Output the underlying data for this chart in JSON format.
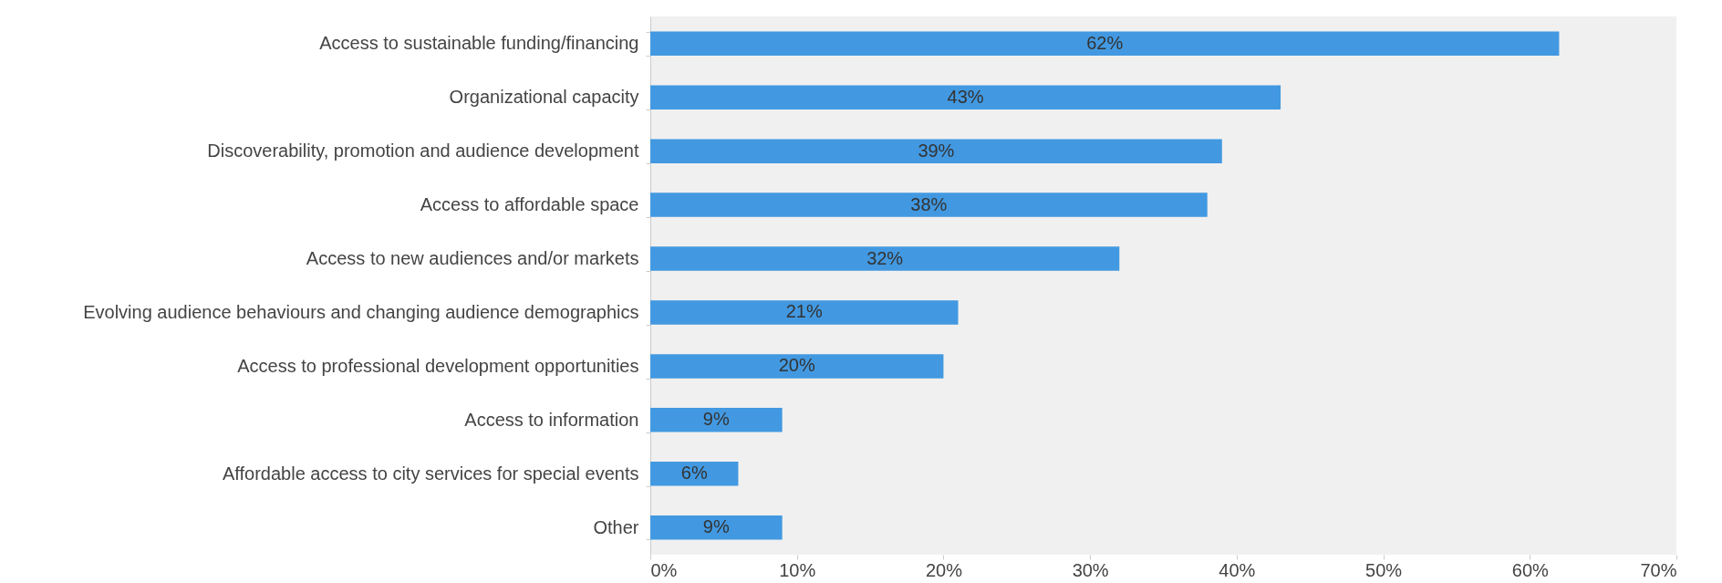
{
  "chart_data": {
    "type": "bar",
    "orientation": "horizontal",
    "categories": [
      "Access to sustainable funding/financing",
      "Organizational capacity",
      "Discoverability, promotion and audience development",
      "Access to affordable space",
      "Access to new audiences and/or markets",
      "Evolving audience behaviours and changing audience demographics",
      "Access to professional development opportunities",
      "Access to information",
      "Affordable access to city services for special events",
      "Other"
    ],
    "values": [
      62,
      43,
      39,
      38,
      32,
      21,
      20,
      9,
      6,
      9
    ],
    "value_labels": [
      "62%",
      "43%",
      "39%",
      "38%",
      "32%",
      "21%",
      "20%",
      "9%",
      "6%",
      "9%"
    ],
    "color": "#4299e1",
    "xlim": [
      0,
      70
    ],
    "xticks": [
      {
        "value": 0,
        "label": "0%"
      },
      {
        "value": 10,
        "label": "10%"
      },
      {
        "value": 20,
        "label": "20%"
      },
      {
        "value": 30,
        "label": "30%"
      },
      {
        "value": 40,
        "label": "40%"
      },
      {
        "value": 50,
        "label": "50%"
      },
      {
        "value": 60,
        "label": "60%"
      },
      {
        "value": 70,
        "label": "70%"
      }
    ],
    "grid": false
  }
}
